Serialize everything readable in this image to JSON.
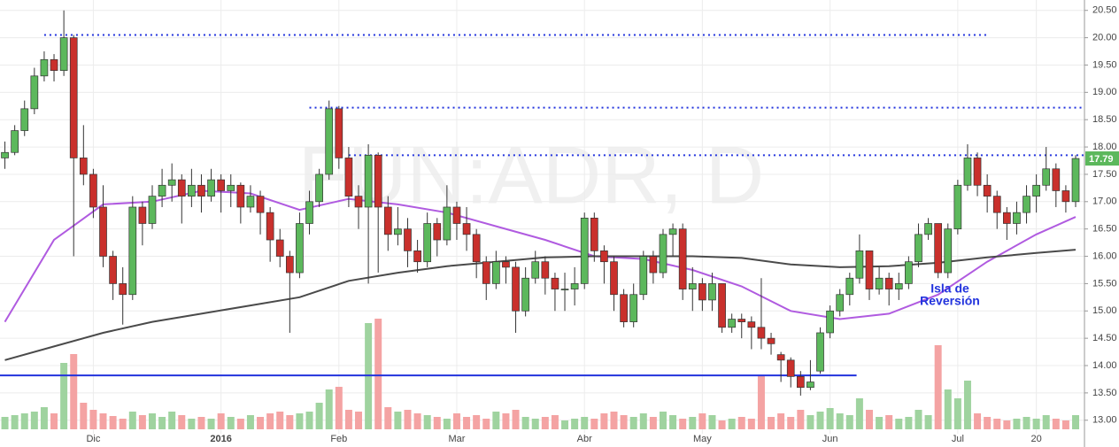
{
  "chart_data": {
    "type": "candlestick",
    "watermark": "FUN:ADR, D",
    "annotation": [
      "Isla de",
      "Reversión"
    ],
    "xlim": [
      -0.5,
      109.9
    ],
    "ylim": [
      12.51,
      20.69
    ],
    "xticks": [
      {
        "value": 9,
        "label": "Dic"
      },
      {
        "value": 22,
        "label": "2016"
      },
      {
        "value": 34,
        "label": "Feb"
      },
      {
        "value": 46,
        "label": "Mar"
      },
      {
        "value": 59,
        "label": "Abr"
      },
      {
        "value": 71,
        "label": "May"
      },
      {
        "value": 84,
        "label": "Jun"
      },
      {
        "value": 97,
        "label": "Jul"
      },
      {
        "value": 105,
        "label": "20"
      }
    ],
    "yticks": [
      {
        "value": 13,
        "label": "13.00"
      },
      {
        "value": 13.5,
        "label": "13.50"
      },
      {
        "value": 14,
        "label": "14.00"
      },
      {
        "value": 14.5,
        "label": "14.50"
      },
      {
        "value": 15,
        "label": "15.00"
      },
      {
        "value": 15.5,
        "label": "15.50"
      },
      {
        "value": 16,
        "label": "16.00"
      },
      {
        "value": 16.5,
        "label": "16.50"
      },
      {
        "value": 17,
        "label": "17.00"
      },
      {
        "value": 17.5,
        "label": "17.50"
      },
      {
        "value": 18,
        "label": "18.00"
      },
      {
        "value": 18.5,
        "label": "18.50"
      },
      {
        "value": 19,
        "label": "19.00"
      },
      {
        "value": 19.5,
        "label": "19.50"
      },
      {
        "value": 20,
        "label": "20.00"
      },
      {
        "value": 20.5,
        "label": "20.50"
      }
    ],
    "grid": true,
    "up_color": "#5cb85c",
    "down_color": "#c9302c",
    "up_volume_color": "#9fd39f",
    "down_volume_color": "#f4a3a3",
    "candles": [
      [
        17.8,
        18.1,
        17.6,
        17.9
      ],
      [
        17.9,
        18.4,
        17.85,
        18.3
      ],
      [
        18.3,
        18.85,
        18.2,
        18.7
      ],
      [
        18.7,
        19.45,
        18.6,
        19.3
      ],
      [
        19.3,
        19.75,
        19.2,
        19.6
      ],
      [
        19.6,
        19.7,
        19.2,
        19.4
      ],
      [
        19.4,
        20.5,
        19.3,
        20.0
      ],
      [
        20.0,
        20.05,
        16.0,
        17.8
      ],
      [
        17.8,
        18.4,
        17.3,
        17.5
      ],
      [
        17.5,
        17.6,
        16.7,
        16.9
      ],
      [
        16.9,
        17.3,
        15.8,
        16.0
      ],
      [
        16.0,
        16.1,
        15.2,
        15.5
      ],
      [
        15.5,
        15.8,
        14.75,
        15.3
      ],
      [
        15.3,
        17.1,
        15.2,
        16.9
      ],
      [
        16.9,
        17.0,
        16.2,
        16.6
      ],
      [
        16.6,
        17.3,
        16.5,
        17.1
      ],
      [
        17.1,
        17.6,
        16.9,
        17.3
      ],
      [
        17.3,
        17.7,
        17.0,
        17.4
      ],
      [
        17.4,
        17.5,
        16.6,
        17.1
      ],
      [
        17.1,
        17.6,
        16.9,
        17.3
      ],
      [
        17.3,
        17.5,
        16.8,
        17.1
      ],
      [
        17.1,
        17.6,
        17.0,
        17.4
      ],
      [
        17.4,
        17.5,
        16.8,
        17.2
      ],
      [
        17.2,
        17.5,
        16.9,
        17.3
      ],
      [
        17.3,
        17.35,
        16.6,
        16.9
      ],
      [
        16.9,
        17.3,
        16.8,
        17.1
      ],
      [
        17.1,
        17.2,
        16.4,
        16.8
      ],
      [
        16.8,
        16.9,
        15.9,
        16.3
      ],
      [
        16.3,
        16.5,
        15.8,
        16.0
      ],
      [
        16.0,
        16.1,
        14.6,
        15.7
      ],
      [
        15.7,
        16.8,
        15.6,
        16.6
      ],
      [
        16.6,
        17.2,
        16.4,
        17.0
      ],
      [
        17.0,
        17.6,
        16.9,
        17.5
      ],
      [
        17.5,
        18.85,
        17.4,
        18.7
      ],
      [
        18.7,
        18.75,
        17.6,
        17.8
      ],
      [
        17.8,
        18.0,
        16.9,
        17.1
      ],
      [
        17.1,
        17.3,
        16.5,
        16.9
      ],
      [
        16.9,
        18.05,
        15.5,
        17.85
      ],
      [
        17.85,
        17.9,
        15.7,
        16.9
      ],
      [
        16.9,
        17.1,
        16.1,
        16.4
      ],
      [
        16.4,
        16.9,
        16.2,
        16.5
      ],
      [
        16.5,
        16.7,
        15.8,
        16.1
      ],
      [
        16.1,
        16.3,
        15.7,
        15.9
      ],
      [
        15.9,
        16.8,
        15.8,
        16.6
      ],
      [
        16.6,
        16.7,
        16.0,
        16.3
      ],
      [
        16.3,
        17.3,
        16.2,
        16.9
      ],
      [
        16.9,
        17.0,
        16.3,
        16.6
      ],
      [
        16.6,
        16.9,
        16.1,
        16.4
      ],
      [
        16.4,
        16.5,
        15.6,
        15.9
      ],
      [
        15.9,
        16.0,
        15.2,
        15.5
      ],
      [
        15.5,
        16.1,
        15.4,
        15.9
      ],
      [
        15.9,
        16.0,
        15.5,
        15.8
      ],
      [
        15.8,
        15.9,
        14.6,
        15.0
      ],
      [
        15.0,
        15.8,
        14.9,
        15.6
      ],
      [
        15.6,
        16.1,
        15.5,
        15.9
      ],
      [
        15.9,
        16.0,
        15.3,
        15.6
      ],
      [
        15.6,
        15.7,
        15.0,
        15.4
      ],
      [
        15.4,
        15.7,
        15.0,
        15.4
      ],
      [
        15.4,
        15.8,
        15.1,
        15.5
      ],
      [
        15.5,
        16.8,
        15.4,
        16.7
      ],
      [
        16.7,
        16.8,
        15.9,
        16.1
      ],
      [
        16.1,
        16.2,
        15.5,
        15.9
      ],
      [
        15.9,
        16.0,
        15.0,
        15.3
      ],
      [
        15.3,
        15.4,
        14.7,
        14.8
      ],
      [
        14.8,
        15.5,
        14.7,
        15.3
      ],
      [
        15.3,
        16.1,
        15.2,
        16.0
      ],
      [
        16.0,
        16.1,
        15.5,
        15.7
      ],
      [
        15.7,
        16.5,
        15.6,
        16.4
      ],
      [
        16.4,
        16.6,
        16.0,
        16.5
      ],
      [
        16.5,
        16.6,
        15.2,
        15.4
      ],
      [
        15.4,
        15.8,
        15.0,
        15.5
      ],
      [
        15.5,
        15.6,
        15.0,
        15.2
      ],
      [
        15.2,
        15.7,
        15.0,
        15.5
      ],
      [
        15.5,
        15.5,
        14.6,
        14.7
      ],
      [
        14.7,
        14.95,
        14.6,
        14.85
      ],
      [
        14.85,
        14.95,
        14.5,
        14.8
      ],
      [
        14.8,
        14.9,
        14.3,
        14.7
      ],
      [
        14.7,
        15.6,
        14.3,
        14.5
      ],
      [
        14.5,
        14.6,
        14.2,
        14.4
      ],
      [
        14.2,
        14.25,
        13.7,
        14.1
      ],
      [
        14.1,
        14.15,
        13.6,
        13.8
      ],
      [
        13.8,
        13.9,
        13.45,
        13.6
      ],
      [
        13.6,
        14.1,
        13.55,
        13.7
      ],
      [
        13.9,
        14.7,
        13.85,
        14.6
      ],
      [
        14.6,
        15.1,
        14.5,
        15.0
      ],
      [
        15.0,
        15.4,
        14.9,
        15.3
      ],
      [
        15.3,
        15.7,
        15.1,
        15.6
      ],
      [
        15.6,
        16.4,
        15.5,
        16.1
      ],
      [
        16.1,
        16.1,
        15.2,
        15.4
      ],
      [
        15.4,
        15.8,
        15.3,
        15.6
      ],
      [
        15.6,
        15.7,
        15.1,
        15.4
      ],
      [
        15.4,
        15.7,
        15.2,
        15.5
      ],
      [
        15.5,
        16.0,
        15.4,
        15.9
      ],
      [
        15.9,
        16.6,
        15.8,
        16.4
      ],
      [
        16.4,
        16.7,
        16.3,
        16.6
      ],
      [
        16.6,
        16.6,
        15.6,
        15.7
      ],
      [
        15.7,
        16.6,
        15.6,
        16.5
      ],
      [
        16.5,
        17.4,
        16.4,
        17.3
      ],
      [
        17.3,
        18.05,
        17.2,
        17.8
      ],
      [
        17.8,
        17.9,
        17.1,
        17.3
      ],
      [
        17.3,
        17.5,
        16.8,
        17.1
      ],
      [
        17.1,
        17.2,
        16.5,
        16.8
      ],
      [
        16.8,
        16.9,
        16.3,
        16.6
      ],
      [
        16.6,
        17.0,
        16.4,
        16.8
      ],
      [
        16.8,
        17.3,
        16.6,
        17.1
      ],
      [
        17.1,
        17.5,
        16.8,
        17.3
      ],
      [
        17.3,
        18.0,
        17.2,
        17.6
      ],
      [
        17.6,
        17.7,
        16.9,
        17.2
      ],
      [
        17.2,
        17.3,
        16.8,
        17.0
      ],
      [
        17.0,
        17.85,
        16.9,
        17.79
      ]
    ],
    "volume": [
      14,
      16,
      18,
      20,
      25,
      18,
      75,
      85,
      30,
      22,
      18,
      15,
      12,
      20,
      16,
      18,
      14,
      20,
      16,
      12,
      14,
      12,
      18,
      14,
      12,
      16,
      14,
      18,
      20,
      16,
      18,
      20,
      30,
      45,
      48,
      22,
      20,
      120,
      125,
      25,
      20,
      22,
      18,
      16,
      14,
      12,
      18,
      14,
      16,
      12,
      20,
      18,
      22,
      14,
      12,
      14,
      16,
      10,
      12,
      14,
      12,
      18,
      20,
      16,
      14,
      18,
      14,
      20,
      16,
      12,
      14,
      18,
      16,
      10,
      12,
      14,
      12,
      60,
      14,
      18,
      14,
      22,
      16,
      20,
      24,
      18,
      16,
      35,
      22,
      14,
      16,
      12,
      14,
      22,
      16,
      95,
      45,
      35,
      55,
      18,
      14,
      12,
      10,
      12,
      14,
      12,
      16,
      12,
      10,
      16
    ],
    "series": [
      {
        "color": "#b05be0",
        "x": [
          0,
          5,
          10,
          15,
          20,
          25,
          30,
          35,
          40,
          45,
          50,
          55,
          60,
          65,
          70,
          75,
          80,
          85,
          90,
          95,
          100,
          105,
          109
        ],
        "values": [
          14.8,
          16.3,
          16.95,
          17.0,
          17.2,
          17.15,
          16.85,
          17.05,
          16.95,
          16.8,
          16.55,
          16.3,
          16.0,
          15.95,
          15.75,
          15.45,
          15.0,
          14.85,
          14.95,
          15.3,
          15.9,
          16.4,
          16.72
        ]
      },
      {
        "color": "#4a4a4a",
        "x": [
          0,
          5,
          10,
          15,
          20,
          25,
          30,
          35,
          40,
          45,
          50,
          55,
          60,
          65,
          70,
          75,
          80,
          85,
          90,
          95,
          100,
          105,
          109
        ],
        "values": [
          14.1,
          14.35,
          14.6,
          14.8,
          14.95,
          15.1,
          15.25,
          15.55,
          15.7,
          15.82,
          15.9,
          15.98,
          16.0,
          16.0,
          16.0,
          15.97,
          15.85,
          15.8,
          15.82,
          15.88,
          15.98,
          16.06,
          16.12
        ]
      }
    ],
    "levels": [
      {
        "value": 20.05,
        "x": [
          4,
          100
        ],
        "style": "dotted"
      },
      {
        "value": 18.72,
        "x": [
          31,
          109.9
        ],
        "style": "dotted"
      },
      {
        "value": 17.85,
        "x": [
          35,
          109.9
        ],
        "style": "dotted"
      },
      {
        "value": 13.82,
        "x": [
          -0.5,
          86.7
        ],
        "style": "solid"
      }
    ],
    "level_color": "#2233dd"
  }
}
